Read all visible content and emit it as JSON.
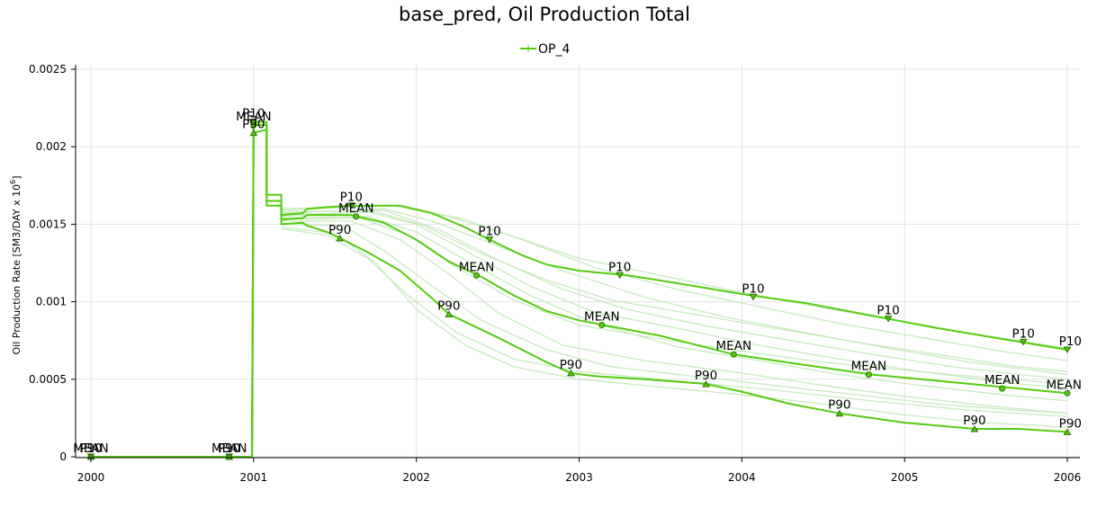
{
  "chart_data": {
    "type": "line",
    "title": "base_pred, Oil Production Total",
    "ylabel": "Oil Production Rate [SM3/DAY x 10",
    "ylabel_exponent": "6",
    "ylabel_close": "]",
    "xlim": [
      2000,
      2006
    ],
    "ylim": [
      0,
      0.0025
    ],
    "x_ticks": [
      2000,
      2001,
      2002,
      2003,
      2004,
      2005,
      2006
    ],
    "x_tick_labels": [
      "2000",
      "2001",
      "2002",
      "2003",
      "2004",
      "2005",
      "2006"
    ],
    "y_ticks": [
      0,
      0.0005,
      0.001,
      0.0015,
      0.002,
      0.0025
    ],
    "y_tick_labels": [
      "0",
      "0.0005",
      "0.001",
      "0.0015",
      "0.002",
      "0.0025"
    ],
    "grid": true,
    "legend": {
      "position": "top-center",
      "entries": [
        "OP_4"
      ]
    },
    "colors": {
      "series": "#55cc11",
      "realization": "#c9ebc0",
      "marker_fill": "#55cc11",
      "marker_stroke": "#2d6e08"
    },
    "series": [
      {
        "name": "P10",
        "marker": "triangle-down",
        "points": [
          [
            2000,
            0
          ],
          [
            2000.99,
            0
          ],
          [
            2001.0,
            0.00216
          ],
          [
            2001.08,
            0.00216
          ],
          [
            2001.08,
            0.00169
          ],
          [
            2001.17,
            0.00169
          ],
          [
            2001.17,
            0.00156
          ],
          [
            2001.3,
            0.00157
          ],
          [
            2001.33,
            0.0016
          ],
          [
            2001.45,
            0.00161
          ],
          [
            2001.6,
            0.00162
          ],
          [
            2001.9,
            0.00162
          ],
          [
            2002.1,
            0.00157
          ],
          [
            2002.3,
            0.00148
          ],
          [
            2002.45,
            0.0014
          ],
          [
            2002.65,
            0.0013
          ],
          [
            2002.8,
            0.00124
          ],
          [
            2003.0,
            0.0012
          ],
          [
            2003.3,
            0.00117
          ],
          [
            2003.6,
            0.00112
          ],
          [
            2004.0,
            0.00105
          ],
          [
            2004.4,
            0.00099
          ],
          [
            2004.8,
            0.00091
          ],
          [
            2005.2,
            0.00083
          ],
          [
            2005.6,
            0.00076
          ],
          [
            2006.0,
            0.00069
          ]
        ],
        "labels": [
          {
            "x": 2000.0,
            "y": 0,
            "text": "P10"
          },
          {
            "x": 2000.85,
            "y": 0,
            "text": "P10"
          },
          {
            "x": 2001.0,
            "y": 0.00216,
            "text": "P10"
          },
          {
            "x": 2001.6,
            "y": 0.00162,
            "text": "P10"
          },
          {
            "x": 2002.45,
            "y": 0.0014,
            "text": "P10"
          },
          {
            "x": 2003.25,
            "y": 0.00117,
            "text": "P10"
          },
          {
            "x": 2004.07,
            "y": 0.00103,
            "text": "P10"
          },
          {
            "x": 2004.9,
            "y": 0.00089,
            "text": "P10"
          },
          {
            "x": 2005.73,
            "y": 0.00074,
            "text": "P10"
          },
          {
            "x": 2006.0,
            "y": 0.00069,
            "text": "P10"
          }
        ]
      },
      {
        "name": "MEAN",
        "marker": "circle",
        "points": [
          [
            2000,
            0
          ],
          [
            2000.99,
            0
          ],
          [
            2001.0,
            0.00214
          ],
          [
            2001.08,
            0.00214
          ],
          [
            2001.08,
            0.00165
          ],
          [
            2001.17,
            0.00165
          ],
          [
            2001.17,
            0.00153
          ],
          [
            2001.3,
            0.00154
          ],
          [
            2001.33,
            0.00156
          ],
          [
            2001.6,
            0.00156
          ],
          [
            2001.8,
            0.00151
          ],
          [
            2002.0,
            0.0014
          ],
          [
            2002.2,
            0.00126
          ],
          [
            2002.4,
            0.00116
          ],
          [
            2002.6,
            0.00104
          ],
          [
            2002.8,
            0.00094
          ],
          [
            2003.0,
            0.00088
          ],
          [
            2003.15,
            0.00085
          ],
          [
            2003.5,
            0.00078
          ],
          [
            2003.95,
            0.00066
          ],
          [
            2004.4,
            0.00059
          ],
          [
            2004.8,
            0.00053
          ],
          [
            2005.2,
            0.00049
          ],
          [
            2005.6,
            0.00045
          ],
          [
            2006.0,
            0.00041
          ]
        ],
        "labels": [
          {
            "x": 2000.0,
            "y": 0,
            "text": "MEAN"
          },
          {
            "x": 2000.85,
            "y": 0,
            "text": "MEAN"
          },
          {
            "x": 2001.0,
            "y": 0.00214,
            "text": "MEAN"
          },
          {
            "x": 2001.63,
            "y": 0.00155,
            "text": "MEAN"
          },
          {
            "x": 2002.37,
            "y": 0.00117,
            "text": "MEAN"
          },
          {
            "x": 2003.14,
            "y": 0.00085,
            "text": "MEAN"
          },
          {
            "x": 2003.95,
            "y": 0.00066,
            "text": "MEAN"
          },
          {
            "x": 2004.78,
            "y": 0.00053,
            "text": "MEAN"
          },
          {
            "x": 2005.6,
            "y": 0.00044,
            "text": "MEAN"
          },
          {
            "x": 2006.0,
            "y": 0.00041,
            "text": "MEAN"
          }
        ]
      },
      {
        "name": "P90",
        "marker": "triangle-up",
        "points": [
          [
            2000,
            0
          ],
          [
            2000.99,
            0
          ],
          [
            2001.0,
            0.00209
          ],
          [
            2001.08,
            0.00211
          ],
          [
            2001.08,
            0.00162
          ],
          [
            2001.17,
            0.00162
          ],
          [
            2001.17,
            0.0015
          ],
          [
            2001.3,
            0.00151
          ],
          [
            2001.33,
            0.00149
          ],
          [
            2001.45,
            0.00145
          ],
          [
            2001.55,
            0.0014
          ],
          [
            2001.7,
            0.00132
          ],
          [
            2001.9,
            0.0012
          ],
          [
            2002.1,
            0.00102
          ],
          [
            2002.2,
            0.00092
          ],
          [
            2002.5,
            0.00077
          ],
          [
            2002.8,
            0.00061
          ],
          [
            2002.95,
            0.00054
          ],
          [
            2003.1,
            0.00052
          ],
          [
            2003.4,
            0.0005
          ],
          [
            2003.78,
            0.00047
          ],
          [
            2004.0,
            0.00042
          ],
          [
            2004.3,
            0.00034
          ],
          [
            2004.6,
            0.00028
          ],
          [
            2005.0,
            0.00022
          ],
          [
            2005.43,
            0.00018
          ],
          [
            2005.7,
            0.00018
          ],
          [
            2006.0,
            0.00016
          ]
        ],
        "labels": [
          {
            "x": 2000.0,
            "y": 0,
            "text": "P90"
          },
          {
            "x": 2000.85,
            "y": 0,
            "text": "P90"
          },
          {
            "x": 2001.0,
            "y": 0.00209,
            "text": "P90"
          },
          {
            "x": 2001.53,
            "y": 0.00141,
            "text": "P90"
          },
          {
            "x": 2002.2,
            "y": 0.00092,
            "text": "P90"
          },
          {
            "x": 2002.95,
            "y": 0.00054,
            "text": "P90"
          },
          {
            "x": 2003.78,
            "y": 0.00047,
            "text": "P90"
          },
          {
            "x": 2004.6,
            "y": 0.00028,
            "text": "P90"
          },
          {
            "x": 2005.43,
            "y": 0.00018,
            "text": "P90"
          },
          {
            "x": 2006.0,
            "y": 0.00016,
            "text": "P90"
          }
        ]
      }
    ],
    "realizations": [
      [
        [
          2001.17,
          0.00148
        ],
        [
          2001.5,
          0.00144
        ],
        [
          2001.75,
          0.00125
        ],
        [
          2002.0,
          0.00095
        ],
        [
          2002.3,
          0.00072
        ],
        [
          2002.6,
          0.00058
        ],
        [
          2003.0,
          0.0005
        ],
        [
          2003.5,
          0.00045
        ],
        [
          2004.0,
          0.0004
        ],
        [
          2004.5,
          0.00034
        ],
        [
          2005.0,
          0.00027
        ],
        [
          2005.5,
          0.00022
        ],
        [
          2006.0,
          0.00019
        ]
      ],
      [
        [
          2001.17,
          0.00152
        ],
        [
          2001.6,
          0.00152
        ],
        [
          2001.9,
          0.0014
        ],
        [
          2002.2,
          0.00118
        ],
        [
          2002.5,
          0.00093
        ],
        [
          2002.9,
          0.00072
        ],
        [
          2003.4,
          0.00062
        ],
        [
          2004.0,
          0.00054
        ],
        [
          2004.5,
          0.00046
        ],
        [
          2005.0,
          0.00039
        ],
        [
          2005.5,
          0.00033
        ],
        [
          2006.0,
          0.00028
        ]
      ],
      [
        [
          2001.17,
          0.00155
        ],
        [
          2001.7,
          0.00158
        ],
        [
          2002.0,
          0.0015
        ],
        [
          2002.3,
          0.00133
        ],
        [
          2002.7,
          0.0011
        ],
        [
          2003.1,
          0.00093
        ],
        [
          2003.6,
          0.00083
        ],
        [
          2004.1,
          0.00072
        ],
        [
          2004.6,
          0.00063
        ],
        [
          2005.1,
          0.00055
        ],
        [
          2005.6,
          0.00048
        ],
        [
          2006.0,
          0.00044
        ]
      ],
      [
        [
          2001.17,
          0.00157
        ],
        [
          2001.8,
          0.0016
        ],
        [
          2002.1,
          0.00152
        ],
        [
          2002.5,
          0.00136
        ],
        [
          2002.9,
          0.0012
        ],
        [
          2003.4,
          0.00103
        ],
        [
          2003.9,
          0.0009
        ],
        [
          2004.4,
          0.0008
        ],
        [
          2004.9,
          0.0007
        ],
        [
          2005.4,
          0.00061
        ],
        [
          2006.0,
          0.00053
        ]
      ],
      [
        [
          2001.17,
          0.00153
        ],
        [
          2001.65,
          0.00154
        ],
        [
          2001.95,
          0.00143
        ],
        [
          2002.25,
          0.00122
        ],
        [
          2002.6,
          0.00101
        ],
        [
          2003.0,
          0.00085
        ],
        [
          2003.5,
          0.00076
        ],
        [
          2004.0,
          0.00068
        ],
        [
          2004.5,
          0.00061
        ],
        [
          2005.0,
          0.00056
        ],
        [
          2005.5,
          0.00051
        ],
        [
          2006.0,
          0.00047
        ]
      ],
      [
        [
          2001.17,
          0.00159
        ],
        [
          2001.85,
          0.00162
        ],
        [
          2002.2,
          0.00155
        ],
        [
          2002.6,
          0.00142
        ],
        [
          2003.0,
          0.00128
        ],
        [
          2003.5,
          0.00117
        ],
        [
          2004.0,
          0.00106
        ],
        [
          2004.5,
          0.00096
        ],
        [
          2005.0,
          0.00087
        ],
        [
          2005.5,
          0.00078
        ],
        [
          2006.0,
          0.0007
        ]
      ],
      [
        [
          2001.17,
          0.0015
        ],
        [
          2001.55,
          0.00149
        ],
        [
          2001.8,
          0.00133
        ],
        [
          2002.1,
          0.0011
        ],
        [
          2002.4,
          0.00088
        ],
        [
          2002.8,
          0.00069
        ],
        [
          2003.2,
          0.00058
        ],
        [
          2003.7,
          0.00052
        ],
        [
          2004.2,
          0.00046
        ],
        [
          2004.7,
          0.0004
        ],
        [
          2005.2,
          0.00034
        ],
        [
          2005.7,
          0.0003
        ],
        [
          2006.0,
          0.00028
        ]
      ],
      [
        [
          2001.17,
          0.00158
        ],
        [
          2001.8,
          0.00159
        ],
        [
          2002.15,
          0.00146
        ],
        [
          2002.5,
          0.00127
        ],
        [
          2002.9,
          0.00108
        ],
        [
          2003.3,
          0.00095
        ],
        [
          2003.8,
          0.00084
        ],
        [
          2004.3,
          0.00075
        ],
        [
          2004.8,
          0.00066
        ],
        [
          2005.3,
          0.00058
        ],
        [
          2005.8,
          0.00052
        ],
        [
          2006.0,
          0.0005
        ]
      ],
      [
        [
          2001.17,
          0.0016
        ],
        [
          2001.9,
          0.00162
        ],
        [
          2002.3,
          0.00153
        ],
        [
          2002.7,
          0.00138
        ],
        [
          2003.1,
          0.00122
        ],
        [
          2003.6,
          0.00108
        ],
        [
          2004.1,
          0.00097
        ],
        [
          2004.6,
          0.00086
        ],
        [
          2005.1,
          0.00077
        ],
        [
          2005.6,
          0.00068
        ],
        [
          2006.0,
          0.00062
        ]
      ],
      [
        [
          2001.17,
          0.00154
        ],
        [
          2001.7,
          0.00155
        ],
        [
          2002.0,
          0.00145
        ],
        [
          2002.3,
          0.00127
        ],
        [
          2002.7,
          0.00104
        ],
        [
          2003.1,
          0.00086
        ],
        [
          2003.6,
          0.00071
        ],
        [
          2004.1,
          0.00062
        ],
        [
          2004.6,
          0.00053
        ],
        [
          2005.1,
          0.00046
        ],
        [
          2005.6,
          0.0004
        ],
        [
          2006.0,
          0.00036
        ]
      ],
      [
        [
          2001.17,
          0.00147
        ],
        [
          2001.45,
          0.00143
        ],
        [
          2001.7,
          0.00128
        ],
        [
          2001.95,
          0.00104
        ],
        [
          2002.25,
          0.0008
        ],
        [
          2002.6,
          0.00063
        ],
        [
          2003.0,
          0.00055
        ],
        [
          2003.6,
          0.00049
        ],
        [
          2004.2,
          0.00043
        ],
        [
          2004.8,
          0.00036
        ],
        [
          2005.4,
          0.0003
        ],
        [
          2006.0,
          0.00026
        ]
      ],
      [
        [
          2001.17,
          0.00156
        ],
        [
          2001.75,
          0.00158
        ],
        [
          2002.05,
          0.00149
        ],
        [
          2002.4,
          0.00131
        ],
        [
          2002.8,
          0.00114
        ],
        [
          2003.2,
          0.00101
        ],
        [
          2003.7,
          0.00092
        ],
        [
          2004.2,
          0.00083
        ],
        [
          2004.7,
          0.00074
        ],
        [
          2005.2,
          0.00066
        ],
        [
          2005.7,
          0.00058
        ],
        [
          2006.0,
          0.00055
        ]
      ]
    ]
  }
}
